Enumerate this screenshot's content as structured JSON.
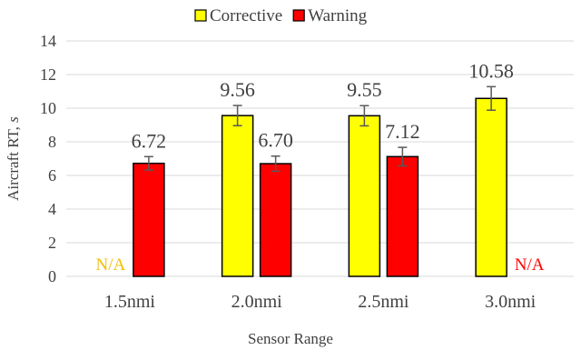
{
  "chart_data": {
    "type": "bar",
    "categories": [
      "1.5nmi",
      "2.0nmi",
      "2.5nmi",
      "3.0nmi"
    ],
    "series": [
      {
        "name": "Corrective",
        "color": "#ffff00",
        "values": [
          null,
          9.56,
          9.55,
          10.58
        ],
        "error": [
          null,
          0.6,
          0.6,
          0.7
        ],
        "labels": [
          "",
          "9.56",
          "9.55",
          "10.58"
        ]
      },
      {
        "name": "Warning",
        "color": "#ff0000",
        "values": [
          6.72,
          6.7,
          7.12,
          null
        ],
        "error": [
          0.4,
          0.45,
          0.55,
          null
        ],
        "labels": [
          "6.72",
          "6.70",
          "7.12",
          ""
        ]
      }
    ],
    "na_labels": [
      {
        "text": "N/A",
        "category": "1.5nmi",
        "series": "Corrective",
        "color": "#f2c000"
      },
      {
        "text": "N/A",
        "category": "3.0nmi",
        "series": "Warning",
        "color": "#ff0000"
      }
    ],
    "xlabel": "Sensor Range",
    "ylabel": "Aircraft RT, s",
    "ylim": [
      0,
      14
    ],
    "yticks": [
      0,
      2,
      4,
      6,
      8,
      10,
      12,
      14
    ],
    "grid": true,
    "legend_position": "top"
  }
}
